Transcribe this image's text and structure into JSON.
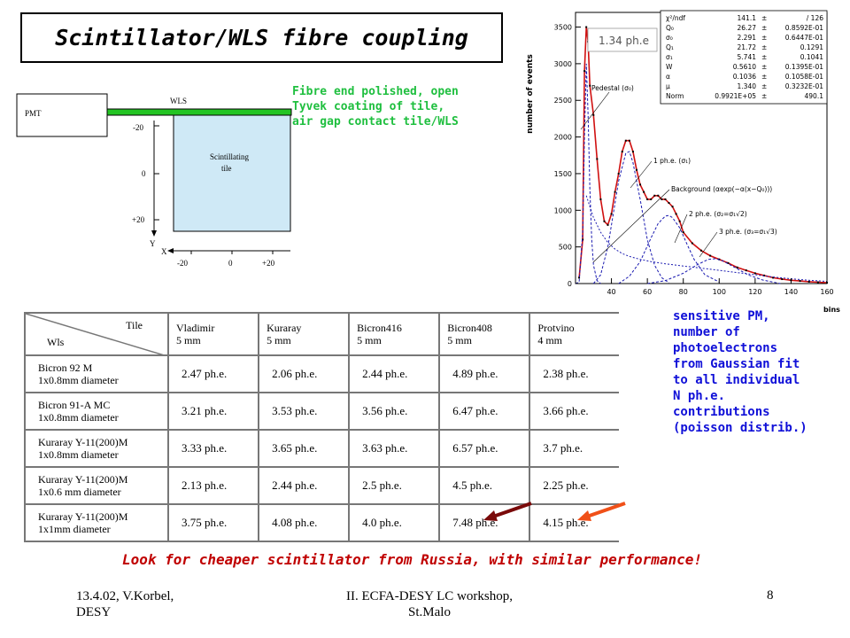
{
  "slide": {
    "title": "Scintillator/WLS fibre coupling",
    "note_fibre": [
      "Fibre end polished, open",
      "Tyvek coating of tile,",
      "air gap contact tile/WLS"
    ],
    "note_pm": [
      "sensitive PM,",
      "number of",
      "photoelectrons",
      "from Gaussian fit",
      "to all individual",
      "N ph.e.",
      "contributions",
      "(poisson distrib.)"
    ],
    "bottom_note": "Look for cheaper scintillator from Russia, with similar performance!",
    "footer_left": [
      "13.4.02, V.Korbel,",
      "DESY"
    ],
    "footer_center": [
      "II. ECFA-DESY LC workshop,",
      "St.Malo"
    ],
    "page_number": "8"
  },
  "diagram": {
    "pmt": "PMT",
    "wls": "WLS",
    "tile": [
      "Scintillating",
      "tile"
    ],
    "y_ticks": [
      "-20",
      "0",
      "+20"
    ],
    "x_ticks": [
      "-20",
      "0",
      "+20"
    ],
    "y_axis": "Y",
    "x_axis": "X"
  },
  "table": {
    "corner_tile": "Tile",
    "corner_wls": "Wls",
    "columns": [
      {
        "name": "Vladimir",
        "size": "5 mm"
      },
      {
        "name": "Kuraray",
        "size": "5 mm"
      },
      {
        "name": "Bicron416",
        "size": "5 mm"
      },
      {
        "name": "Bicron408",
        "size": "5 mm"
      },
      {
        "name": "Protvino",
        "size": "4 mm"
      }
    ],
    "rows": [
      {
        "fibre": "Bicron 92 M",
        "diameter": "1x0.8mm diameter",
        "values": [
          "2.47 ph.e.",
          "2.06 ph.e.",
          "2.44 ph.e.",
          "4.89 ph.e.",
          "2.38 ph.e."
        ]
      },
      {
        "fibre": "Bicron 91-A MC",
        "diameter": "1x0.8mm diameter",
        "values": [
          "3.21 ph.e.",
          "3.53 ph.e.",
          "3.56 ph.e.",
          "6.47 ph.e.",
          "3.66 ph.e."
        ]
      },
      {
        "fibre": "Kuraray Y-11(200)M",
        "diameter": "1x0.8mm diameter",
        "values": [
          "3.33 ph.e.",
          "3.65 ph.e.",
          "3.63 ph.e.",
          "6.57 ph.e.",
          "3.7 ph.e."
        ]
      },
      {
        "fibre": "Kuraray Y-11(200)M",
        "diameter": "1x0.6 mm diameter",
        "values": [
          "2.13 ph.e.",
          "2.44 ph.e.",
          "2.5 ph.e.",
          "4.5 ph.e.",
          "2.25 ph.e."
        ]
      },
      {
        "fibre": "Kuraray Y-11(200)M",
        "diameter": "1x1mm diameter",
        "values": [
          "3.75 ph.e.",
          "4.08 ph.e.",
          "4.0 ph.e.",
          "7.48 ph.e.",
          "4.15 ph.e."
        ]
      }
    ]
  },
  "chart_data": {
    "type": "line",
    "xlabel": "bins",
    "ylabel": "number of events",
    "xlim": [
      20,
      160
    ],
    "ylim": [
      0,
      3700
    ],
    "x_ticks": [
      40,
      60,
      80,
      100,
      120,
      140,
      160
    ],
    "y_ticks": [
      0,
      500,
      1000,
      1500,
      2000,
      2500,
      3000,
      3500
    ],
    "inset_label": "1.34 ph.e",
    "annotations": [
      "Pedestal (σ₀)",
      "1 ph.e. (σ₁)",
      "Background (αexp(−α(x−Q₀)))",
      "2 ph.e. (σ₂=σ₁√2)",
      "3 ph.e. (σ₃=σ₁√3)"
    ],
    "fit_params": [
      {
        "name": "χ²/ndf",
        "value": "141.1",
        "error": "/ 126"
      },
      {
        "name": "Q₀",
        "value": "26.27",
        "error": "0.8592E-01"
      },
      {
        "name": "σ₀",
        "value": "2.291",
        "error": "0.6447E-01"
      },
      {
        "name": "Q₁",
        "value": "21.72",
        "error": "0.1291"
      },
      {
        "name": "σ₁",
        "value": "5.741",
        "error": "0.1041"
      },
      {
        "name": "W",
        "value": "0.5610",
        "error": "0.1395E-01"
      },
      {
        "name": "α",
        "value": "0.1036",
        "error": "0.1058E-01"
      },
      {
        "name": "μ",
        "value": "1.340",
        "error": "0.3232E-01"
      },
      {
        "name": "Norm",
        "value": "0.9921E+05",
        "error": "490.1"
      }
    ],
    "series": [
      {
        "name": "data",
        "x": [
          22,
          24,
          25,
          26,
          27,
          28,
          30,
          32,
          34,
          36,
          38,
          40,
          42,
          44,
          46,
          48,
          50,
          52,
          54,
          56,
          58,
          60,
          62,
          64,
          66,
          68,
          70,
          72,
          74,
          76,
          78,
          80,
          85,
          90,
          95,
          100,
          105,
          110,
          115,
          120,
          125,
          130,
          135,
          140,
          145,
          150,
          155,
          160
        ],
        "y": [
          80,
          600,
          2900,
          3500,
          3300,
          2700,
          2300,
          1700,
          1150,
          850,
          800,
          950,
          1250,
          1500,
          1800,
          1950,
          1950,
          1800,
          1550,
          1350,
          1250,
          1150,
          1150,
          1200,
          1200,
          1150,
          1150,
          1100,
          1050,
          950,
          850,
          700,
          550,
          450,
          380,
          330,
          280,
          220,
          180,
          140,
          110,
          80,
          60,
          45,
          35,
          25,
          18,
          12
        ]
      },
      {
        "name": "pedestal",
        "x": [
          20,
          22,
          24,
          25,
          26,
          27,
          28,
          29,
          30,
          32,
          34
        ],
        "y": [
          0,
          20,
          700,
          2000,
          3000,
          2300,
          1300,
          600,
          250,
          40,
          0
        ]
      },
      {
        "name": "1 ph.e.",
        "x": [
          30,
          34,
          38,
          40,
          44,
          48,
          50,
          52,
          56,
          60,
          64,
          68,
          72
        ],
        "y": [
          0,
          120,
          500,
          800,
          1400,
          1780,
          1800,
          1650,
          1150,
          600,
          250,
          80,
          10
        ]
      },
      {
        "name": "2 ph.e.",
        "x": [
          44,
          50,
          56,
          62,
          66,
          70,
          72,
          74,
          78,
          82,
          86,
          92,
          100
        ],
        "y": [
          0,
          100,
          300,
          620,
          820,
          920,
          930,
          900,
          760,
          540,
          330,
          120,
          20
        ]
      },
      {
        "name": "3 ph.e.",
        "x": [
          60,
          70,
          80,
          88,
          94,
          98,
          102,
          108,
          116,
          124,
          134
        ],
        "y": [
          0,
          40,
          140,
          260,
          330,
          340,
          310,
          230,
          120,
          50,
          0
        ]
      },
      {
        "name": "background",
        "x": [
          26,
          30,
          34,
          38,
          42,
          46,
          50,
          56,
          62,
          70,
          80,
          90,
          100,
          110,
          120,
          130,
          140,
          150,
          160
        ],
        "y": [
          1200,
          900,
          700,
          560,
          470,
          410,
          370,
          330,
          300,
          270,
          240,
          210,
          180,
          150,
          120,
          90,
          65,
          45,
          30
        ]
      }
    ]
  }
}
